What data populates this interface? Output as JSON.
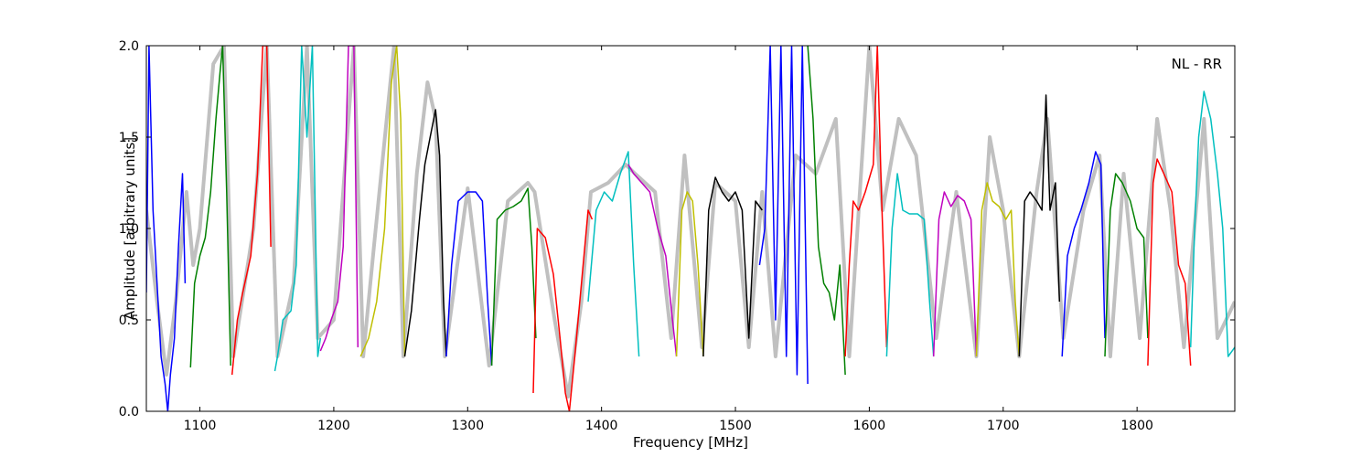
{
  "chart_data": {
    "type": "line",
    "title": "",
    "annotation": "NL - RR",
    "legend_placement": "none",
    "grid": false,
    "xlabel": "Frequency [MHz]",
    "ylabel": "Amplitude [arbitrary units]",
    "xlim": [
      1060,
      1873
    ],
    "ylim": [
      0.0,
      2.0
    ],
    "x_ticks": [
      1100,
      1200,
      1300,
      1400,
      1500,
      1600,
      1700,
      1800
    ],
    "x_tick_labels": [
      "1100",
      "1200",
      "1300",
      "1400",
      "1500",
      "1600",
      "1700",
      "1800"
    ],
    "y_ticks": [
      0.0,
      0.5,
      1.0,
      1.5,
      2.0
    ],
    "y_tick_labels": [
      "0.0",
      "0.5",
      "1.0",
      "1.5",
      "2.0"
    ],
    "background_series": {
      "color": "#c0c0c0",
      "x": [
        1060,
        1068,
        1075,
        1082,
        1090,
        1095,
        1100,
        1110,
        1118,
        1125,
        1140,
        1150,
        1158,
        1170,
        1180,
        1188,
        1200,
        1215,
        1222,
        1230,
        1245,
        1252,
        1262,
        1270,
        1276,
        1283,
        1300,
        1316,
        1330,
        1345,
        1350,
        1365,
        1375,
        1385,
        1392,
        1405,
        1418,
        1425,
        1440,
        1452,
        1462,
        1475,
        1485,
        1500,
        1510,
        1520,
        1530,
        1545,
        1560,
        1575,
        1585,
        1600,
        1610,
        1622,
        1635,
        1650,
        1665,
        1680,
        1690,
        1700,
        1712,
        1725,
        1733,
        1745,
        1760,
        1772,
        1780,
        1790,
        1802,
        1815,
        1825,
        1835,
        1850,
        1860,
        1873
      ],
      "y": [
        1.1,
        0.6,
        0.2,
        0.6,
        1.2,
        0.8,
        1.0,
        1.9,
        2.0,
        0.3,
        1.0,
        2.0,
        0.3,
        0.7,
        2.0,
        0.4,
        0.5,
        2.0,
        0.3,
        0.9,
        2.0,
        0.3,
        1.3,
        1.8,
        1.6,
        0.3,
        1.22,
        0.25,
        1.15,
        1.25,
        1.2,
        0.5,
        0.08,
        0.6,
        1.2,
        1.25,
        1.35,
        1.3,
        1.2,
        0.4,
        1.4,
        0.35,
        1.25,
        1.15,
        0.35,
        1.2,
        0.3,
        1.4,
        1.3,
        1.6,
        0.3,
        2.0,
        1.1,
        1.6,
        1.4,
        0.4,
        1.2,
        0.3,
        1.5,
        1.1,
        0.3,
        1.2,
        1.6,
        0.4,
        1.1,
        1.4,
        0.3,
        1.3,
        0.4,
        1.6,
        1.1,
        0.35,
        1.6,
        0.4,
        0.6
      ]
    },
    "series": [
      {
        "color": "#0000ff",
        "x": [
          1060,
          1062,
          1065,
          1068,
          1071,
          1074,
          1076,
          1078,
          1081,
          1084,
          1087,
          1089
        ],
        "y": [
          0.65,
          2.0,
          1.1,
          0.7,
          0.3,
          0.15,
          0.0,
          0.2,
          0.4,
          0.9,
          1.3,
          0.7
        ]
      },
      {
        "color": "#008000",
        "x": [
          1093,
          1096,
          1100,
          1104,
          1108,
          1112,
          1115,
          1117,
          1120,
          1123
        ],
        "y": [
          0.24,
          0.7,
          0.85,
          0.95,
          1.2,
          1.6,
          1.85,
          2.0,
          1.2,
          0.25
        ]
      },
      {
        "color": "#ff0000",
        "x": [
          1124,
          1128,
          1132,
          1138,
          1143,
          1147,
          1150,
          1153
        ],
        "y": [
          0.2,
          0.5,
          0.65,
          0.85,
          1.3,
          2.0,
          2.0,
          0.9
        ]
      },
      {
        "color": "#00bfbf",
        "x": [
          1156,
          1158,
          1162,
          1168,
          1172,
          1176,
          1180,
          1184,
          1188,
          1190
        ],
        "y": [
          0.22,
          0.3,
          0.5,
          0.55,
          0.8,
          2.0,
          1.5,
          2.0,
          0.3,
          0.4
        ]
      },
      {
        "color": "#bf00bf",
        "x": [
          1190,
          1194,
          1198,
          1203,
          1207,
          1211,
          1215,
          1218
        ],
        "y": [
          0.33,
          0.4,
          0.5,
          0.6,
          0.9,
          2.0,
          2.0,
          0.35
        ]
      },
      {
        "color": "#bfbf00",
        "x": [
          1220,
          1226,
          1232,
          1238,
          1243,
          1247,
          1250,
          1253
        ],
        "y": [
          0.3,
          0.4,
          0.6,
          1.0,
          1.8,
          2.0,
          1.6,
          0.3
        ]
      },
      {
        "color": "#000000",
        "x": [
          1253,
          1258,
          1264,
          1268,
          1272,
          1276,
          1279,
          1282,
          1284
        ],
        "y": [
          0.3,
          0.55,
          1.05,
          1.35,
          1.5,
          1.65,
          1.4,
          0.6,
          0.3
        ]
      },
      {
        "color": "#0000ff",
        "x": [
          1284,
          1288,
          1293,
          1300,
          1306,
          1311,
          1315,
          1318
        ],
        "y": [
          0.3,
          0.8,
          1.15,
          1.2,
          1.2,
          1.15,
          0.6,
          0.25
        ]
      },
      {
        "color": "#008000",
        "x": [
          1318,
          1322,
          1328,
          1334,
          1340,
          1345,
          1348,
          1351
        ],
        "y": [
          0.25,
          1.05,
          1.1,
          1.12,
          1.15,
          1.22,
          0.9,
          0.4
        ]
      },
      {
        "color": "#ff0000",
        "x": [
          1349,
          1352,
          1358,
          1364,
          1369,
          1373,
          1376,
          1380,
          1385,
          1390,
          1393
        ],
        "y": [
          0.1,
          1.0,
          0.95,
          0.75,
          0.4,
          0.1,
          0.0,
          0.3,
          0.7,
          1.1,
          1.05
        ]
      },
      {
        "color": "#00bfbf",
        "x": [
          1390,
          1396,
          1402,
          1408,
          1414,
          1420,
          1424,
          1428
        ],
        "y": [
          0.6,
          1.1,
          1.2,
          1.15,
          1.3,
          1.42,
          0.8,
          0.3
        ]
      },
      {
        "color": "#bf00bf",
        "x": [
          1420,
          1424,
          1430,
          1436,
          1442,
          1448,
          1453,
          1456
        ],
        "y": [
          1.35,
          1.3,
          1.25,
          1.2,
          1.0,
          0.85,
          0.5,
          0.3
        ]
      },
      {
        "color": "#bfbf00",
        "x": [
          1456,
          1460,
          1464,
          1468,
          1472,
          1476
        ],
        "y": [
          0.3,
          1.1,
          1.2,
          1.15,
          0.8,
          0.3
        ]
      },
      {
        "color": "#000000",
        "x": [
          1476,
          1480,
          1485,
          1490,
          1495,
          1500,
          1505,
          1510,
          1515,
          1520
        ],
        "y": [
          0.3,
          1.1,
          1.28,
          1.2,
          1.15,
          1.2,
          1.1,
          0.4,
          1.15,
          1.1
        ]
      },
      {
        "color": "#0000ff",
        "x": [
          1518,
          1522,
          1526,
          1530,
          1534,
          1538,
          1542,
          1546,
          1550,
          1554
        ],
        "y": [
          0.8,
          1.0,
          2.0,
          0.5,
          2.0,
          0.3,
          2.0,
          0.2,
          2.0,
          0.15
        ]
      },
      {
        "color": "#008000",
        "x": [
          1554,
          1558,
          1562,
          1566,
          1570,
          1574,
          1578,
          1582
        ],
        "y": [
          2.0,
          1.6,
          0.9,
          0.7,
          0.65,
          0.5,
          0.8,
          0.2
        ]
      },
      {
        "color": "#ff0000",
        "x": [
          1582,
          1585,
          1588,
          1592,
          1597,
          1603,
          1606,
          1609,
          1613
        ],
        "y": [
          0.3,
          0.8,
          1.15,
          1.1,
          1.2,
          1.35,
          2.0,
          1.2,
          0.35
        ]
      },
      {
        "color": "#00bfbf",
        "x": [
          1613,
          1617,
          1621,
          1625,
          1630,
          1636,
          1641,
          1645,
          1648
        ],
        "y": [
          0.3,
          1.0,
          1.3,
          1.1,
          1.08,
          1.08,
          1.05,
          0.6,
          0.3
        ]
      },
      {
        "color": "#bf00bf",
        "x": [
          1648,
          1652,
          1656,
          1661,
          1666,
          1671,
          1676,
          1680
        ],
        "y": [
          0.3,
          1.05,
          1.2,
          1.12,
          1.18,
          1.15,
          1.05,
          0.3
        ]
      },
      {
        "color": "#bfbf00",
        "x": [
          1680,
          1684,
          1688,
          1692,
          1697,
          1702,
          1706,
          1709,
          1712
        ],
        "y": [
          0.3,
          1.1,
          1.25,
          1.15,
          1.12,
          1.05,
          1.1,
          0.6,
          0.3
        ]
      },
      {
        "color": "#000000",
        "x": [
          1712,
          1716,
          1720,
          1725,
          1729,
          1732,
          1735,
          1739,
          1742
        ],
        "y": [
          0.3,
          1.15,
          1.2,
          1.15,
          1.1,
          1.73,
          1.1,
          1.25,
          0.6
        ]
      },
      {
        "color": "#0000ff",
        "x": [
          1744,
          1748,
          1753,
          1758,
          1764,
          1769,
          1773,
          1776
        ],
        "y": [
          0.3,
          0.85,
          1.0,
          1.1,
          1.25,
          1.42,
          1.35,
          0.4
        ]
      },
      {
        "color": "#008000",
        "x": [
          1776,
          1780,
          1784,
          1789,
          1795,
          1800,
          1805,
          1808
        ],
        "y": [
          0.3,
          1.1,
          1.3,
          1.25,
          1.15,
          1.0,
          0.95,
          0.4
        ]
      },
      {
        "color": "#ff0000",
        "x": [
          1808,
          1812,
          1815,
          1820,
          1826,
          1831,
          1836,
          1840
        ],
        "y": [
          0.25,
          1.25,
          1.38,
          1.3,
          1.2,
          0.8,
          0.7,
          0.25
        ]
      },
      {
        "color": "#00bfbf",
        "x": [
          1840,
          1843,
          1846,
          1850,
          1855,
          1860,
          1864,
          1868,
          1873
        ],
        "y": [
          0.35,
          1.0,
          1.5,
          1.75,
          1.6,
          1.3,
          1.0,
          0.3,
          0.35
        ]
      }
    ]
  }
}
